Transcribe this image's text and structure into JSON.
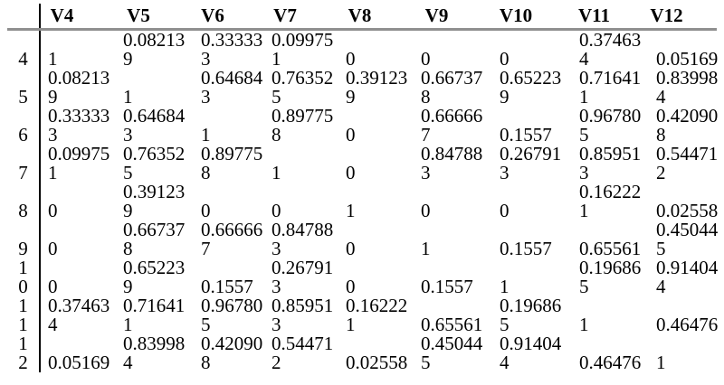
{
  "colors": {
    "background": "#ffffff",
    "text": "#000000",
    "header_rule": "#8f8f8f",
    "divider": "#000000"
  },
  "chart_data": {
    "type": "table",
    "columns": [
      "V4",
      "V5",
      "V6",
      "V7",
      "V8",
      "V9",
      "V10",
      "V11",
      "V12"
    ],
    "row_labels": [
      "4",
      "5",
      "6",
      "7",
      "8",
      "9",
      "10",
      "11",
      "12"
    ],
    "matrix": [
      [
        "1",
        "0.082139",
        "0.333333",
        "0.099751",
        "0",
        "0",
        "0",
        "0.374634",
        "0.05169"
      ],
      [
        "0.082139",
        "1",
        "0.646843",
        "0.763525",
        "0.391239",
        "0.667378",
        "0.652239",
        "0.716411",
        "0.839984"
      ],
      [
        "0.333333",
        "0.646843",
        "1",
        "0.897758",
        "0",
        "0.666667",
        "0.1557",
        "0.967805",
        "0.420908"
      ],
      [
        "0.099751",
        "0.763525",
        "0.897758",
        "1",
        "0",
        "0.847883",
        "0.267913",
        "0.859513",
        "0.544712"
      ],
      [
        "0",
        "0.391239",
        "0",
        "0",
        "1",
        "0",
        "0",
        "0.162221",
        "0.02558"
      ],
      [
        "0",
        "0.667378",
        "0.666667",
        "0.847883",
        "0",
        "1",
        "0.1557",
        "0.65561",
        "0.450445"
      ],
      [
        "0",
        "0.652239",
        "0.1557",
        "0.267913",
        "0",
        "0.1557",
        "1",
        "0.196865",
        "0.914044"
      ],
      [
        "0.374634",
        "0.716411",
        "0.967805",
        "0.859513",
        "0.162221",
        "0.65561",
        "0.196865",
        "1",
        "0.46476"
      ],
      [
        "0.05169",
        "0.839984",
        "0.420908",
        "0.544712",
        "0.02558",
        "0.450445",
        "0.914044",
        "0.46476",
        "1"
      ]
    ]
  }
}
